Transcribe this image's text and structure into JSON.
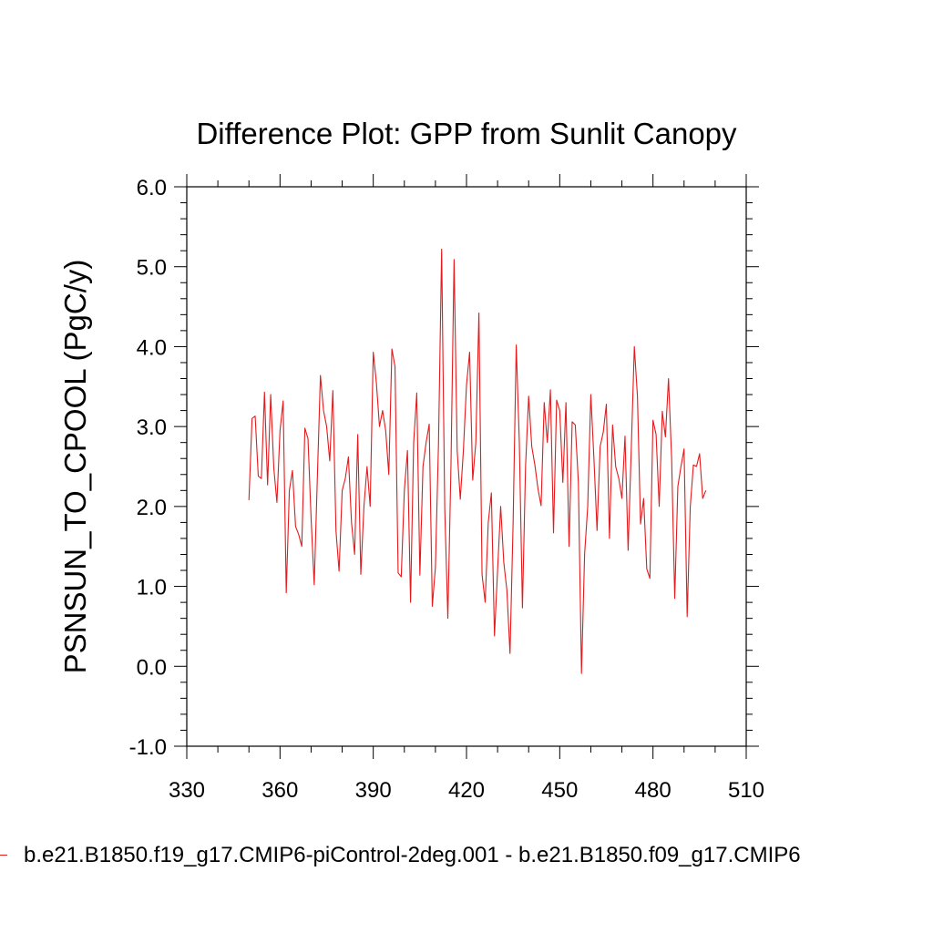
{
  "chart_data": {
    "type": "line",
    "title": "Difference Plot: GPP from Sunlit Canopy",
    "xlabel": "",
    "ylabel": "PSNSUN_TO_CPOOL  (PgC/y)",
    "xlim": [
      330,
      510
    ],
    "ylim": [
      -1.0,
      6.0
    ],
    "xticks": [
      330,
      360,
      390,
      420,
      450,
      480,
      510
    ],
    "xtick_labels": [
      "330",
      "360",
      "390",
      "420",
      "450",
      "480",
      "510"
    ],
    "yticks": [
      -1.0,
      0.0,
      1.0,
      2.0,
      3.0,
      4.0,
      5.0,
      6.0
    ],
    "ytick_labels": [
      "-1.0",
      "0.0",
      "1.0",
      "2.0",
      "3.0",
      "4.0",
      "5.0",
      "6.0"
    ],
    "series": [
      {
        "name": "b.e21.B1850.f19_g17.CMIP6-piControl-2deg.001 - b.e21.B1850.f09_g17.CMIP6",
        "color": "#e41a1c",
        "x_start": 350,
        "x_step": 1,
        "values": [
          2.08,
          3.1,
          3.13,
          2.38,
          2.35,
          3.43,
          2.27,
          3.4,
          2.48,
          2.05,
          2.95,
          3.32,
          0.92,
          2.2,
          2.45,
          1.75,
          1.65,
          1.5,
          2.98,
          2.85,
          1.85,
          1.02,
          2.35,
          3.64,
          3.2,
          3.0,
          2.57,
          3.45,
          1.7,
          1.19,
          2.2,
          2.35,
          2.62,
          1.8,
          1.4,
          2.9,
          1.15,
          2.0,
          2.5,
          2.0,
          3.93,
          3.55,
          3.0,
          3.2,
          2.95,
          2.4,
          3.97,
          3.75,
          1.17,
          1.12,
          2.2,
          2.7,
          0.8,
          2.8,
          3.42,
          1.14,
          2.5,
          2.8,
          3.03,
          0.75,
          1.24,
          2.8,
          5.22,
          1.98,
          0.6,
          2.5,
          5.09,
          2.7,
          2.09,
          2.7,
          3.52,
          3.93,
          2.33,
          2.8,
          4.42,
          1.15,
          0.8,
          1.8,
          2.17,
          0.38,
          1.2,
          2.0,
          1.3,
          0.95,
          0.16,
          1.8,
          4.02,
          2.8,
          0.73,
          2.5,
          3.38,
          2.75,
          2.52,
          2.22,
          2.01,
          3.3,
          2.8,
          3.46,
          1.67,
          3.33,
          3.2,
          2.3,
          3.3,
          1.5,
          3.06,
          3.02,
          2.3,
          -0.09,
          1.4,
          2.0,
          3.4,
          2.6,
          1.7,
          2.75,
          2.93,
          3.28,
          1.6,
          3.02,
          2.5,
          2.35,
          2.1,
          2.88,
          1.45,
          2.7,
          4.0,
          3.38,
          1.78,
          2.1,
          1.22,
          1.1,
          3.08,
          2.9,
          2.0,
          3.19,
          2.87,
          3.6,
          2.6,
          0.85,
          2.25,
          2.5,
          2.72,
          0.62,
          2.0,
          2.52,
          2.5,
          2.66,
          2.1,
          2.2
        ]
      }
    ]
  },
  "legend": {
    "label": "b.e21.B1850.f19_g17.CMIP6-piControl-2deg.001 - b.e21.B1850.f09_g17.CMIP6"
  }
}
